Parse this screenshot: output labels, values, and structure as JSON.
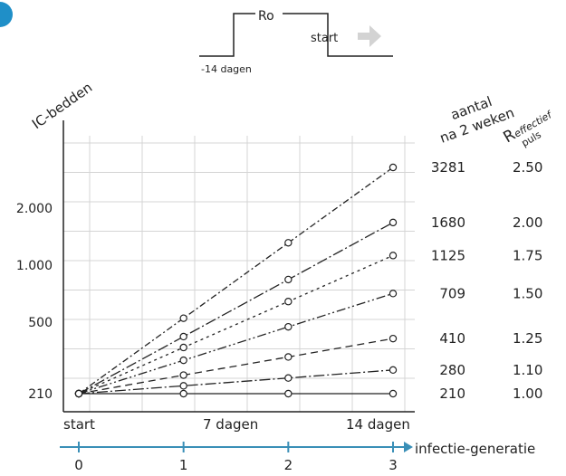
{
  "pulse_diagram": {
    "label_ro": "Ro",
    "label_start": "start",
    "label_minus14": "-14 dagen"
  },
  "column_headers": {
    "count": [
      "aantal",
      "na 2 weken"
    ],
    "r_main": "R",
    "r_sub": "effectief",
    "r_sub2": "puls"
  },
  "chart_data": {
    "type": "line",
    "title": "",
    "ylabel": "IC-bedden",
    "y_scale": "log",
    "yticks": [
      210,
      500,
      1000,
      2000
    ],
    "ytick_labels": [
      "210",
      "500",
      "1.000",
      "2.000"
    ],
    "ylim": [
      190,
      4300
    ],
    "x_top_labels": [
      "start",
      "7 dagen",
      "14 dagen"
    ],
    "x_bottom_values": [
      0,
      1,
      2,
      3
    ],
    "x_bottom_title": "infectie-generatie",
    "grid": true,
    "colors": {
      "axis_bottom": "#3a8fb7",
      "lines": "#222222"
    },
    "series": [
      {
        "r": "2.50",
        "count": "3281",
        "dash": "7 3 2 3",
        "values": [
          210,
          525,
          1313,
          3281
        ]
      },
      {
        "r": "2.00",
        "count": "1680",
        "dash": "12 3 2 3",
        "values": [
          210,
          420,
          840,
          1680
        ]
      },
      {
        "r": "1.75",
        "count": "1125",
        "dash": "3 4",
        "values": [
          210,
          368,
          643,
          1125
        ]
      },
      {
        "r": "1.50",
        "count": "709",
        "dash": "10 3 2 3 2 3",
        "values": [
          210,
          315,
          473,
          709
        ]
      },
      {
        "r": "1.25",
        "count": "410",
        "dash": "8 5",
        "values": [
          210,
          263,
          328,
          410
        ]
      },
      {
        "r": "1.10",
        "count": "280",
        "dash": "12 3 2 3",
        "values": [
          210,
          231,
          254,
          280
        ]
      },
      {
        "r": "1.00",
        "count": "210",
        "dash": "",
        "values": [
          210,
          210,
          210,
          210
        ]
      }
    ]
  }
}
